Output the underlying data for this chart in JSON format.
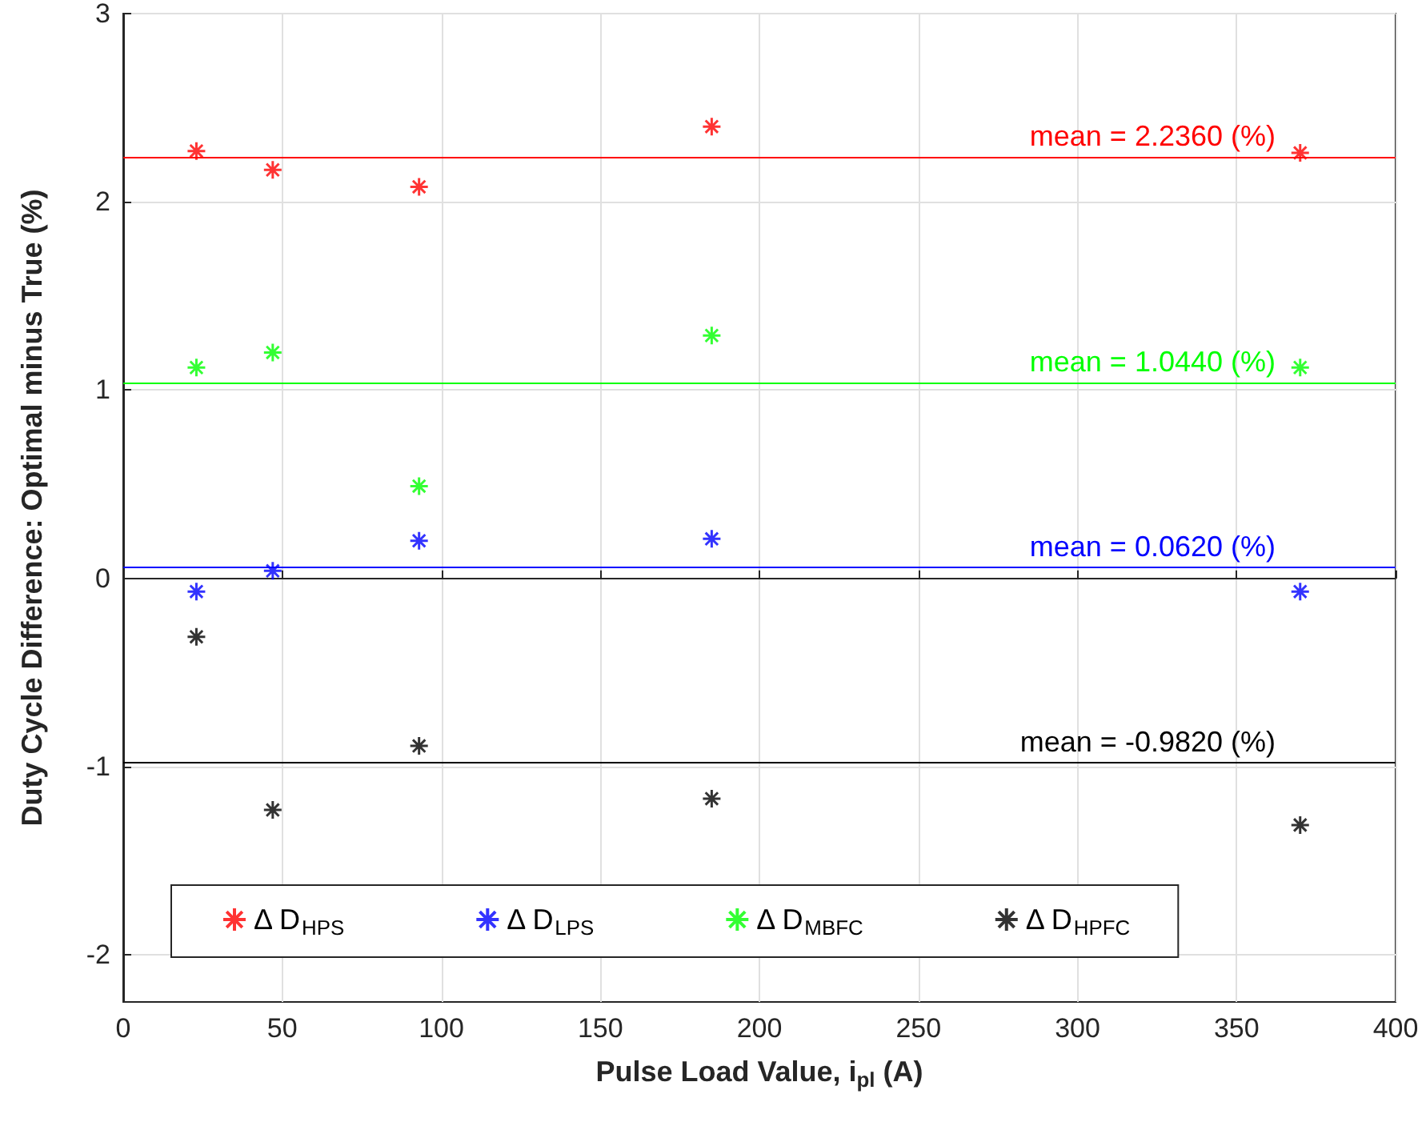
{
  "chart_data": {
    "type": "scatter",
    "xlabel": "Pulse Load Value, i$_{pl}$ (A)",
    "ylabel": "Duty Cycle Difference: Optimal minus True (%)",
    "x": [
      23,
      47,
      93,
      185,
      370
    ],
    "series": [
      {
        "name": "Δ D$_{HPS}$",
        "color": "#ff0000",
        "values": [
          2.27,
          2.17,
          2.08,
          2.4,
          2.26
        ]
      },
      {
        "name": "Δ D$_{LPS}$",
        "color": "#0000ff",
        "values": [
          -0.07,
          0.04,
          0.2,
          0.21,
          -0.07
        ]
      },
      {
        "name": "Δ D$_{MBFC}$",
        "color": "#00ff00",
        "values": [
          1.12,
          1.2,
          0.49,
          1.29,
          1.12
        ]
      },
      {
        "name": "Δ D$_{HPFC}$",
        "color": "#000000",
        "values": [
          -0.31,
          -1.23,
          -0.89,
          -1.17,
          -1.31
        ]
      }
    ],
    "ref_lines": [
      {
        "axis": "y",
        "value": 2.236,
        "label": "mean = 2.2360 (%)",
        "color": "#ff0000"
      },
      {
        "axis": "y",
        "value": 1.044,
        "label": "mean = 1.0440 (%)",
        "color": "#00ff00"
      },
      {
        "axis": "y",
        "value": 0.062,
        "label": "mean = 0.0620 (%)",
        "color": "#0000ff"
      },
      {
        "axis": "y",
        "value": -0.982,
        "label": "mean = -0.9820 (%)",
        "color": "#000000"
      }
    ],
    "xlim": [
      0,
      400
    ],
    "xticks": [
      0,
      50,
      100,
      150,
      200,
      250,
      300,
      350,
      400
    ],
    "ylim": [
      -2.25,
      3
    ],
    "yticks": [
      -2,
      -1,
      0,
      1,
      2,
      3
    ],
    "grid": true,
    "legend": "bottom",
    "marker": "cross"
  }
}
